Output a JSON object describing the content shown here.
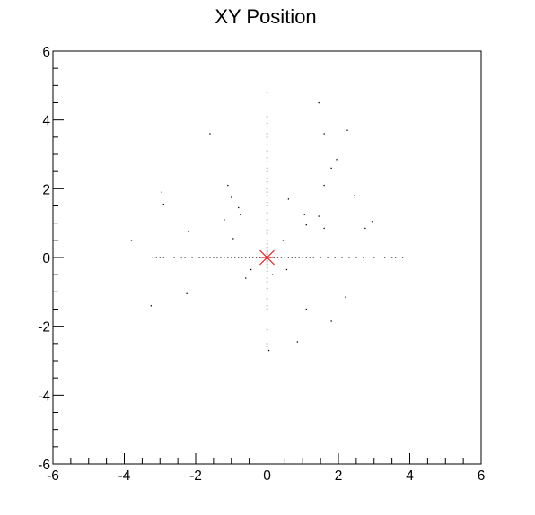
{
  "chart_data": {
    "type": "scatter",
    "title": "XY Position",
    "xlabel": "",
    "ylabel": "",
    "xlim": [
      -6,
      6
    ],
    "ylim": [
      -6,
      6
    ],
    "x_ticks": [
      "-6",
      "-4",
      "-2",
      "0",
      "2",
      "4",
      "6"
    ],
    "y_ticks": [
      "-6",
      "-4",
      "-2",
      "0",
      "2",
      "4",
      "6"
    ],
    "grid": false,
    "colors": {
      "points": "#000000",
      "marker": "#e02020",
      "frame": "#000000"
    },
    "series": [
      {
        "marker": "dot",
        "points": [
          [
            0,
            4.8
          ],
          [
            0,
            4.1
          ],
          [
            0,
            3.9
          ],
          [
            0,
            3.8
          ],
          [
            0,
            3.6
          ],
          [
            0,
            3.5
          ],
          [
            0,
            3.3
          ],
          [
            0,
            3.1
          ],
          [
            0,
            2.9
          ],
          [
            0,
            2.8
          ],
          [
            0,
            2.6
          ],
          [
            0,
            2.5
          ],
          [
            0,
            2.3
          ],
          [
            0,
            2.2
          ],
          [
            0,
            2.0
          ],
          [
            0,
            1.9
          ],
          [
            0,
            1.8
          ],
          [
            0,
            1.6
          ],
          [
            0,
            1.5
          ],
          [
            0,
            1.3
          ],
          [
            0,
            1.1
          ],
          [
            0,
            1.0
          ],
          [
            0,
            0.8
          ],
          [
            0,
            0.7
          ],
          [
            0,
            0.5
          ],
          [
            0,
            0.4
          ],
          [
            0,
            0.3
          ],
          [
            0,
            0.2
          ],
          [
            0,
            0.1
          ],
          [
            0,
            -0.1
          ],
          [
            0,
            -0.2
          ],
          [
            0,
            -0.3
          ],
          [
            0,
            -0.4
          ],
          [
            0,
            -0.6
          ],
          [
            0,
            -0.7
          ],
          [
            0,
            -0.9
          ],
          [
            0,
            -1.0
          ],
          [
            0,
            -1.2
          ],
          [
            0,
            -1.4
          ],
          [
            0,
            -1.5
          ],
          [
            0,
            -2.1
          ],
          [
            0,
            -2.5
          ],
          [
            0,
            -2.6
          ],
          [
            0.05,
            -2.7
          ],
          [
            -3.2,
            0
          ],
          [
            -3.1,
            0
          ],
          [
            -3.0,
            0
          ],
          [
            -2.9,
            0
          ],
          [
            -2.6,
            0
          ],
          [
            -2.4,
            0
          ],
          [
            -2.3,
            0
          ],
          [
            -2.1,
            0
          ],
          [
            -1.9,
            0
          ],
          [
            -1.8,
            0
          ],
          [
            -1.7,
            0
          ],
          [
            -1.6,
            0
          ],
          [
            -1.5,
            0
          ],
          [
            -1.4,
            0
          ],
          [
            -1.3,
            0
          ],
          [
            -1.2,
            0
          ],
          [
            -1.1,
            0
          ],
          [
            -1.0,
            0
          ],
          [
            -0.9,
            0
          ],
          [
            -0.8,
            0
          ],
          [
            -0.7,
            0
          ],
          [
            -0.6,
            0
          ],
          [
            -0.5,
            0
          ],
          [
            -0.4,
            0
          ],
          [
            -0.3,
            0
          ],
          [
            -0.2,
            0
          ],
          [
            -0.1,
            0
          ],
          [
            0.1,
            0
          ],
          [
            0.2,
            0
          ],
          [
            0.3,
            0
          ],
          [
            0.4,
            0
          ],
          [
            0.5,
            0
          ],
          [
            0.6,
            0
          ],
          [
            0.7,
            0
          ],
          [
            0.8,
            0
          ],
          [
            0.9,
            0
          ],
          [
            1.0,
            0
          ],
          [
            1.1,
            0
          ],
          [
            1.2,
            0
          ],
          [
            1.3,
            0
          ],
          [
            1.5,
            0
          ],
          [
            1.7,
            0
          ],
          [
            1.9,
            0
          ],
          [
            2.1,
            0
          ],
          [
            2.3,
            0
          ],
          [
            2.5,
            0
          ],
          [
            2.7,
            0
          ],
          [
            3.0,
            0
          ],
          [
            3.3,
            0
          ],
          [
            3.5,
            0
          ],
          [
            3.6,
            0
          ],
          [
            3.8,
            0
          ],
          [
            1.45,
            4.5
          ],
          [
            2.25,
            3.7
          ],
          [
            1.6,
            3.6
          ],
          [
            -1.6,
            3.6
          ],
          [
            1.95,
            2.85
          ],
          [
            1.8,
            2.6
          ],
          [
            1.6,
            2.1
          ],
          [
            2.45,
            1.8
          ],
          [
            -2.95,
            1.9
          ],
          [
            -2.9,
            1.55
          ],
          [
            -1.1,
            2.1
          ],
          [
            -1.0,
            1.75
          ],
          [
            -0.8,
            1.45
          ],
          [
            -0.75,
            1.25
          ],
          [
            -1.2,
            1.1
          ],
          [
            0.6,
            1.7
          ],
          [
            1.05,
            1.25
          ],
          [
            1.1,
            0.95
          ],
          [
            1.45,
            1.2
          ],
          [
            1.6,
            0.85
          ],
          [
            2.95,
            1.05
          ],
          [
            2.75,
            0.85
          ],
          [
            -2.2,
            0.75
          ],
          [
            -3.8,
            0.5
          ],
          [
            -0.95,
            0.55
          ],
          [
            0.45,
            0.5
          ],
          [
            -0.6,
            -0.6
          ],
          [
            -0.45,
            -0.35
          ],
          [
            0.15,
            -0.5
          ],
          [
            -2.25,
            -1.05
          ],
          [
            -3.25,
            -1.4
          ],
          [
            2.2,
            -1.15
          ],
          [
            1.8,
            -1.85
          ],
          [
            1.1,
            -1.5
          ],
          [
            0.85,
            -2.45
          ],
          [
            0.55,
            -0.35
          ]
        ]
      },
      {
        "marker": "star",
        "points": [
          [
            0,
            0
          ]
        ]
      }
    ]
  }
}
